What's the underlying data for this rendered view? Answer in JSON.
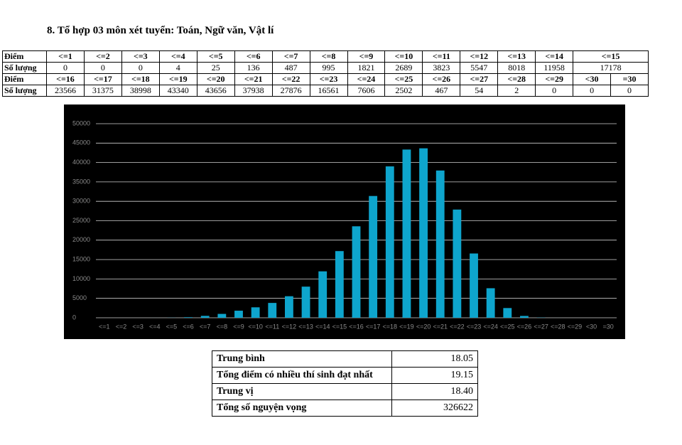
{
  "heading": "8. Tổ hợp 03 môn xét tuyển: Toán, Ngữ văn, Vật lí",
  "score_table": {
    "rows": [
      [
        "Điểm",
        "<=1",
        "<=2",
        "<=3",
        "<=4",
        "<=5",
        "<=6",
        "<=7",
        "<=8",
        "<=9",
        "<=10",
        "<=11",
        "<=12",
        "<=13",
        "<=14",
        "<=15"
      ],
      [
        "Số lượng",
        "0",
        "0",
        "0",
        "4",
        "25",
        "136",
        "487",
        "995",
        "1821",
        "2689",
        "3823",
        "5547",
        "8018",
        "11958",
        "17178"
      ],
      [
        "Điểm",
        "<=16",
        "<=17",
        "<=18",
        "<=19",
        "<=20",
        "<=21",
        "<=22",
        "<=23",
        "<=24",
        "<=25",
        "<=26",
        "<=27",
        "<=28",
        "<=29",
        "<30",
        "=30"
      ],
      [
        "Số lượng",
        "23566",
        "31375",
        "38998",
        "43340",
        "43656",
        "37938",
        "27876",
        "16561",
        "7606",
        "2502",
        "467",
        "54",
        "2",
        "0",
        "0",
        "0"
      ]
    ]
  },
  "chart_data": {
    "type": "bar",
    "categories": [
      "<=1",
      "<=2",
      "<=3",
      "<=4",
      "<=5",
      "<=6",
      "<=7",
      "<=8",
      "<=9",
      "<=10",
      "<=11",
      "<=12",
      "<=13",
      "<=14",
      "<=15",
      "<=16",
      "<=17",
      "<=18",
      "<=19",
      "<=20",
      "<=21",
      "<=22",
      "<=23",
      "<=24",
      "<=25",
      "<=26",
      "<=27",
      "<=28",
      "<=29",
      "<30",
      "=30"
    ],
    "values": [
      0,
      0,
      0,
      4,
      25,
      136,
      487,
      995,
      1821,
      2689,
      3823,
      5547,
      8018,
      11958,
      17178,
      23566,
      31375,
      38998,
      43340,
      43656,
      37938,
      27876,
      16561,
      7606,
      2502,
      467,
      54,
      2,
      0,
      0,
      0
    ],
    "color": "#0ea5cd",
    "ylim": [
      0,
      50000
    ],
    "yticks": [
      0,
      5000,
      10000,
      15000,
      20000,
      25000,
      30000,
      35000,
      40000,
      45000,
      50000
    ],
    "grid": true
  },
  "stats_table": {
    "rows": [
      [
        "Trung bình",
        "18.05"
      ],
      [
        "Tổng điểm có nhiều thí sinh đạt nhất",
        "19.15"
      ],
      [
        "Trung vị",
        "18.40"
      ],
      [
        "Tổng số nguyện vọng",
        "326622"
      ]
    ]
  }
}
